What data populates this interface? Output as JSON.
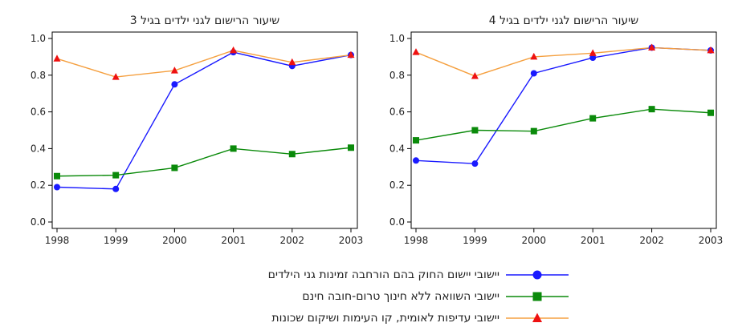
{
  "chart_data": [
    {
      "type": "line",
      "title": "שיעור הרישום לגני ילדים בגיל 3",
      "x": [
        1998,
        1999,
        2000,
        2001,
        2002,
        2003
      ],
      "ylim": [
        0,
        1
      ],
      "yticks": [
        "0.0",
        "0.2",
        "0.4",
        "0.6",
        "0.8",
        "1.0"
      ],
      "xticks": [
        "1998",
        "1999",
        "2000",
        "2001",
        "2002",
        "2003"
      ],
      "grid": false,
      "series": [
        {
          "name": "יישובי יישום החוק בהם הורחבה זמינות גני הילדים",
          "color": "#1a1aff",
          "marker": "circle",
          "values": [
            0.19,
            0.18,
            0.75,
            0.925,
            0.85,
            0.91
          ]
        },
        {
          "name": "יישובי השוואה ללא חינוך טרום-חובה חינם",
          "color": "#0a8a0a",
          "marker": "square",
          "values": [
            0.25,
            0.255,
            0.295,
            0.4,
            0.37,
            0.405
          ]
        },
        {
          "name": "יישובי עדיפות לאומית, קו העימות ושיקום שכונות",
          "color": "#f5a040",
          "marker": "triangle",
          "values": [
            0.89,
            0.79,
            0.825,
            0.935,
            0.87,
            0.91
          ]
        }
      ]
    },
    {
      "type": "line",
      "title": "שיעור הרישום לגני ילדים בגיל 4",
      "x": [
        1998,
        1999,
        2000,
        2001,
        2002,
        2003
      ],
      "ylim": [
        0,
        1
      ],
      "yticks": [
        "0.0",
        "0.2",
        "0.4",
        "0.6",
        "0.8",
        "1.0"
      ],
      "xticks": [
        "1998",
        "1999",
        "2000",
        "2001",
        "2002",
        "2003"
      ],
      "grid": false,
      "series": [
        {
          "name": "יישובי יישום החוק בהם הורחבה זמינות גני הילדים",
          "color": "#1a1aff",
          "marker": "circle",
          "values": [
            0.335,
            0.318,
            0.81,
            0.895,
            0.95,
            0.935
          ]
        },
        {
          "name": "יישובי השוואה ללא חינוך טרום-חובה חינם",
          "color": "#0a8a0a",
          "marker": "square",
          "values": [
            0.445,
            0.5,
            0.495,
            0.565,
            0.615,
            0.595
          ]
        },
        {
          "name": "יישובי עדיפות לאומית, קו העימות ושיקום שכונות",
          "color": "#f5a040",
          "marker": "triangle",
          "values": [
            0.925,
            0.795,
            0.9,
            0.92,
            0.95,
            0.935
          ]
        }
      ]
    }
  ],
  "legend": {
    "placement": "bottom",
    "items": [
      {
        "label": "יישובי יישום החוק בהם הורחבה זמינות גני הילדים",
        "color": "#1a1aff",
        "marker": "circle"
      },
      {
        "label": "יישובי השוואה ללא חינוך טרום-חובה חינם",
        "color": "#0a8a0a",
        "marker": "square"
      },
      {
        "label": "יישובי עדיפות לאומית, קו העימות ושיקום שכונות",
        "color": "#f5a040",
        "marker": "triangle"
      }
    ]
  }
}
